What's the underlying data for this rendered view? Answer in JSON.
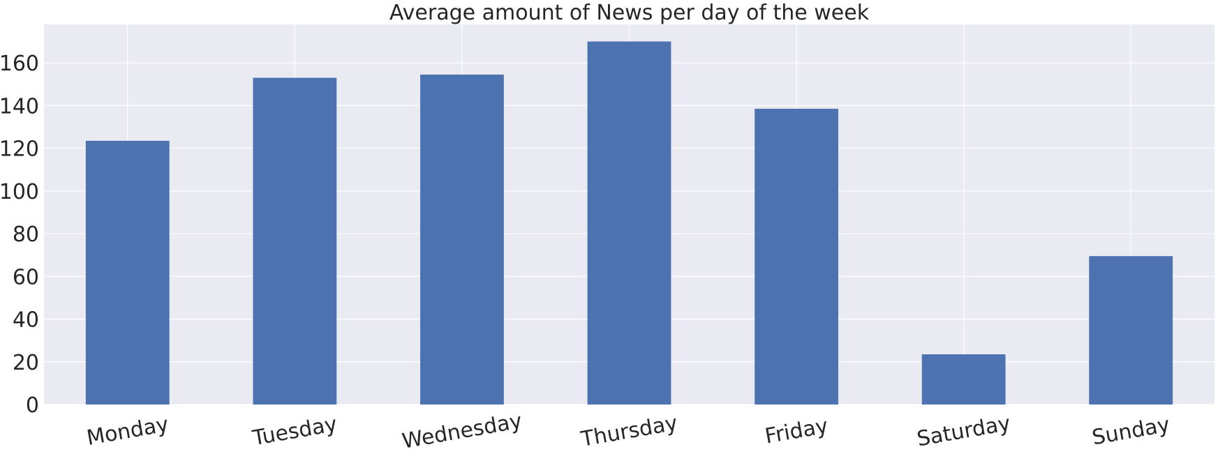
{
  "chart_data": {
    "type": "bar",
    "title": "Average amount of News per day of the week",
    "xlabel": "",
    "ylabel": "",
    "categories": [
      "Monday",
      "Tuesday",
      "Wednesday",
      "Thursday",
      "Friday",
      "Saturday",
      "Sunday"
    ],
    "values": [
      123.5,
      153,
      154.5,
      170,
      138.5,
      23.5,
      69.5
    ],
    "ylim": [
      0,
      178
    ],
    "yticks": [
      0,
      20,
      40,
      60,
      80,
      100,
      120,
      140,
      160
    ],
    "grid": true,
    "legend": "none",
    "x_tick_rotation_deg": 10
  },
  "colors": {
    "bar": "#4c72b0",
    "plot_background": "#eaeaf2",
    "grid": "#ffffff",
    "text": "#262626"
  }
}
